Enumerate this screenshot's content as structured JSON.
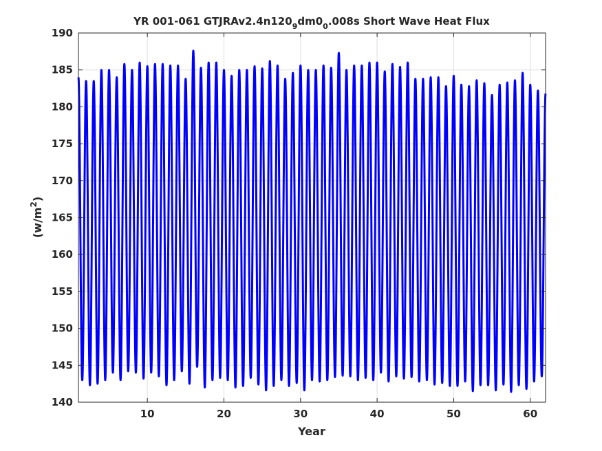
{
  "chart_data": {
    "type": "line",
    "title": {
      "prefix": "YR 001-061 GTJRAv2.4n120",
      "sub1": "9",
      "mid": "dm0",
      "sub2": "0",
      "suffix": ".008s Short Wave Heat Flux"
    },
    "xlabel": "Year",
    "ylabel": {
      "prefix": "(w/m",
      "sup": "2",
      "suffix": ")"
    },
    "xlim": [
      1,
      62
    ],
    "ylim": [
      140,
      190
    ],
    "xticks": [
      10,
      20,
      30,
      40,
      50,
      60
    ],
    "yticks": [
      140,
      145,
      150,
      155,
      160,
      165,
      170,
      175,
      180,
      185,
      190
    ],
    "grid": true,
    "series": [
      {
        "color": "#0000ff",
        "cycle_start_year": 1,
        "cycles_per_year": 1,
        "peak_phase": 0.0,
        "trough_phase": 0.5,
        "annual_maxima": [
          184.0,
          183.5,
          183.5,
          185.0,
          185.0,
          184.0,
          185.8,
          185.0,
          186.0,
          185.5,
          185.8,
          185.8,
          185.6,
          185.6,
          183.8,
          187.6,
          185.3,
          186.0,
          186.0,
          185.0,
          184.2,
          185.0,
          185.0,
          185.5,
          185.2,
          186.2,
          185.6,
          183.8,
          184.6,
          185.6,
          185.0,
          185.0,
          185.6,
          185.3,
          187.3,
          185.0,
          185.6,
          185.6,
          186.0,
          186.0,
          184.8,
          185.8,
          185.4,
          186.0,
          183.8,
          183.8,
          184.0,
          184.0,
          182.8,
          184.2,
          183.0,
          182.8,
          183.6,
          183.2,
          181.6,
          183.0,
          183.3,
          183.6,
          184.6,
          183.0,
          182.2
        ],
        "annual_minima": [
          143.0,
          142.3,
          142.5,
          143.0,
          144.0,
          143.0,
          144.2,
          144.0,
          143.2,
          144.0,
          143.5,
          142.3,
          143.0,
          144.2,
          142.5,
          144.8,
          142.0,
          143.0,
          143.3,
          143.0,
          142.0,
          142.2,
          143.3,
          142.4,
          141.6,
          142.2,
          143.0,
          142.2,
          142.6,
          141.6,
          143.0,
          142.8,
          143.0,
          143.4,
          143.6,
          143.5,
          143.0,
          143.3,
          143.0,
          144.0,
          142.8,
          143.5,
          143.2,
          143.4,
          142.8,
          143.0,
          142.4,
          142.6,
          142.2,
          142.2,
          142.8,
          141.5,
          142.3,
          142.3,
          141.6,
          142.4,
          141.4,
          142.3,
          141.8,
          142.8,
          143.5
        ],
        "end_value": 181.8
      }
    ]
  }
}
